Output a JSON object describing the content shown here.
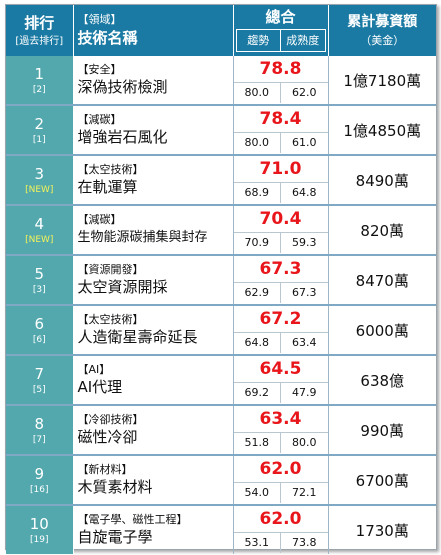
{
  "header": {
    "rank_title": "排行",
    "rank_sub": "[過去排行]",
    "field_sub": "【領域】",
    "field_title": "技術名稱",
    "total_title": "總合",
    "trend_label": "趨勢",
    "maturity_label": "成熟度",
    "funding_title": "累計募資額",
    "funding_unit": "（美金）"
  },
  "rows": [
    {
      "rank": "1",
      "prev": "[2]",
      "category": "【安全】",
      "name": "深偽技術檢測",
      "total": "78.8",
      "trend": "80.0",
      "maturity": "62.0",
      "funding": "1億7180萬"
    },
    {
      "rank": "2",
      "prev": "[1]",
      "category": "【減碳】",
      "name": "增強岩石風化",
      "total": "78.4",
      "trend": "80.0",
      "maturity": "61.0",
      "funding": "1億4850萬"
    },
    {
      "rank": "3",
      "prev": "[NEW]",
      "category": "【太空技術】",
      "name": "在軌運算",
      "total": "71.0",
      "trend": "68.9",
      "maturity": "64.8",
      "funding": "8490萬"
    },
    {
      "rank": "4",
      "prev": "[NEW]",
      "category": "【減碳】",
      "name": "生物能源碳捕集與封存",
      "total": "70.4",
      "trend": "70.9",
      "maturity": "59.3",
      "funding": "820萬"
    },
    {
      "rank": "5",
      "prev": "[3]",
      "category": "【資源開發】",
      "name": "太空資源開採",
      "total": "67.3",
      "trend": "62.9",
      "maturity": "67.3",
      "funding": "8470萬"
    },
    {
      "rank": "6",
      "prev": "[6]",
      "category": "【太空技術】",
      "name": "人造衛星壽命延長",
      "total": "67.2",
      "trend": "64.8",
      "maturity": "63.4",
      "funding": "6000萬"
    },
    {
      "rank": "7",
      "prev": "[5]",
      "category": "【AI】",
      "name": "AI代理",
      "total": "64.5",
      "trend": "69.2",
      "maturity": "47.9",
      "funding": "638億"
    },
    {
      "rank": "8",
      "prev": "[7]",
      "category": "【冷卻技術】",
      "name": "磁性冷卻",
      "total": "63.4",
      "trend": "51.8",
      "maturity": "80.0",
      "funding": "990萬"
    },
    {
      "rank": "9",
      "prev": "[16]",
      "category": "【新材料】",
      "name": "木質素材料",
      "total": "62.0",
      "trend": "54.0",
      "maturity": "72.1",
      "funding": "6700萬"
    },
    {
      "rank": "10",
      "prev": "[19]",
      "category": "【電子學、磁性工程】",
      "name": "自旋電子學",
      "total": "62.0",
      "trend": "53.1",
      "maturity": "73.8",
      "funding": "1730萬"
    }
  ],
  "colors": {
    "header_bg": "#1a7aa3",
    "rank_bg": "#52a8ad",
    "new_marker": "#f5f25a",
    "total_score": "#e8161b"
  }
}
